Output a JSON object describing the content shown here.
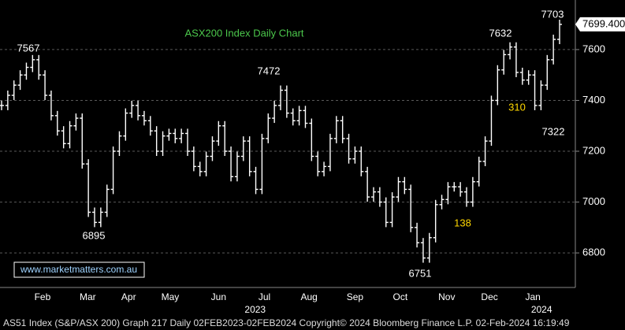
{
  "chart_data": {
    "type": "ohlc",
    "title": "ASX200 Index Daily Chart",
    "series": [
      {
        "name": "AS51 Index",
        "color": "#ffffff",
        "values": [
          7380,
          7420,
          7460,
          7500,
          7530,
          7560,
          7500,
          7420,
          7340,
          7280,
          7230,
          7300,
          7330,
          7150,
          6960,
          6920,
          6960,
          7050,
          7200,
          7260,
          7350,
          7380,
          7340,
          7320,
          7280,
          7200,
          7260,
          7270,
          7250,
          7270,
          7200,
          7140,
          7120,
          7180,
          7240,
          7300,
          7200,
          7100,
          7180,
          7240,
          7120,
          7050,
          7250,
          7330,
          7380,
          7440,
          7350,
          7320,
          7360,
          7310,
          7180,
          7120,
          7140,
          7250,
          7320,
          7250,
          7170,
          7200,
          7120,
          7020,
          7040,
          7000,
          6920,
          7020,
          7080,
          7050,
          6900,
          6840,
          6780,
          6860,
          6990,
          7010,
          7060,
          7060,
          7040,
          7000,
          7080,
          7160,
          7240,
          7400,
          7520,
          7580,
          7610,
          7510,
          7480,
          7500,
          7380,
          7460,
          7560,
          7640,
          7699
        ]
      }
    ],
    "xlim": [
      0,
      90
    ],
    "xticks": [
      {
        "value": 6.6,
        "label": "Feb"
      },
      {
        "value": 13.9,
        "label": "Mar"
      },
      {
        "value": 20.5,
        "label": "Apr"
      },
      {
        "value": 27.2,
        "label": "May"
      },
      {
        "value": 35,
        "label": "Jun"
      },
      {
        "value": 42.4,
        "label": "Jul"
      },
      {
        "value": 49.6,
        "label": "Aug"
      },
      {
        "value": 57,
        "label": "Sep"
      },
      {
        "value": 64.3,
        "label": "Oct"
      },
      {
        "value": 71.8,
        "label": "Nov"
      },
      {
        "value": 78.7,
        "label": "Dec"
      },
      {
        "value": 85.7,
        "label": "Jan"
      }
    ],
    "year_ticks": [
      {
        "value": 40.9,
        "label": "2023"
      },
      {
        "value": 87.1,
        "label": "2024"
      }
    ],
    "ylim": [
      6664,
      7795
    ],
    "yticks": [
      6800,
      7000,
      7200,
      7400,
      7600
    ],
    "grid": true,
    "last_price": {
      "value": 7699.4,
      "label": "7699.400"
    },
    "annotations": [
      "7567",
      "6895",
      "7472",
      "6751",
      "138",
      "7632",
      "310",
      "7322",
      "7703"
    ],
    "watermark": "www.marketmatters.com.au",
    "footer": "AS51 Index (S&P/ASX 200) Graph 217  Daily 02FEB2023-02FEB2024  Copyright© 2024 Bloomberg Finance L.P.  02-Feb-2024 16:19:49"
  }
}
